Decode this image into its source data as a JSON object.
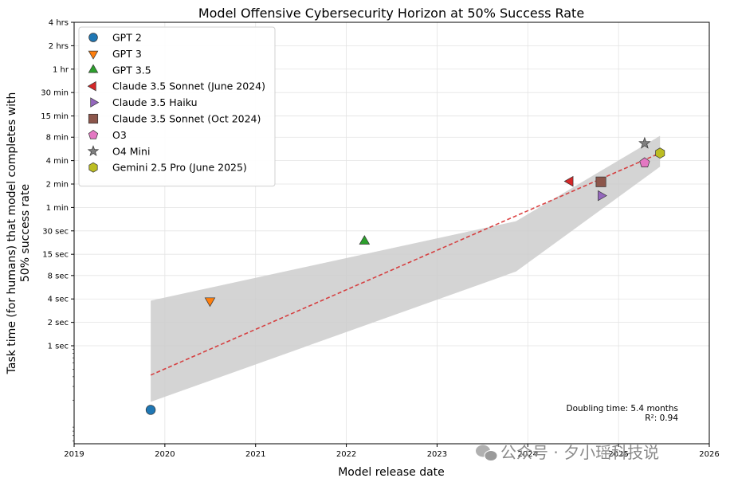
{
  "chart_data": {
    "type": "scatter",
    "title": "Model Offensive Cybersecurity Horizon at 50% Success Rate",
    "xlabel": "Model release date",
    "ylabel_lines": [
      "Task time (for humans) that model completes with",
      "50% success rate"
    ],
    "x_scale": "date",
    "y_scale": "log",
    "xlim": [
      "2019-01-01",
      "2026-01-01"
    ],
    "x_ticks": [
      "2019",
      "2020",
      "2021",
      "2022",
      "2023",
      "2024",
      "2025",
      "2026"
    ],
    "y_ticks": [
      {
        "label": "1 sec",
        "seconds": 1
      },
      {
        "label": "2 sec",
        "seconds": 2
      },
      {
        "label": "4 sec",
        "seconds": 4
      },
      {
        "label": "8 sec",
        "seconds": 8
      },
      {
        "label": "15 sec",
        "seconds": 15
      },
      {
        "label": "30 sec",
        "seconds": 30
      },
      {
        "label": "1 min",
        "seconds": 60
      },
      {
        "label": "2 min",
        "seconds": 120
      },
      {
        "label": "4 min",
        "seconds": 240
      },
      {
        "label": "8 min",
        "seconds": 480
      },
      {
        "label": "15 min",
        "seconds": 900
      },
      {
        "label": "30 min",
        "seconds": 1800
      },
      {
        "label": "1 hr",
        "seconds": 3600
      },
      {
        "label": "2 hrs",
        "seconds": 7200
      },
      {
        "label": "4 hrs",
        "seconds": 14400
      }
    ],
    "ylim_seconds": [
      0.055,
      14400
    ],
    "grid": true,
    "legend_position": "top-left",
    "series": [
      {
        "name": "GPT 2",
        "date": "2019-11-05",
        "seconds": 0.15,
        "marker": "circle",
        "color": "#1f77b4"
      },
      {
        "name": "GPT 3",
        "date": "2020-07-01",
        "seconds": 3.8,
        "marker": "triangle-down",
        "color": "#ff7f0e"
      },
      {
        "name": "GPT 3.5",
        "date": "2022-03-15",
        "seconds": 22,
        "marker": "triangle-up",
        "color": "#2ca02c"
      },
      {
        "name": "Claude 3.5 Sonnet (June 2024)",
        "date": "2024-06-20",
        "seconds": 130,
        "marker": "triangle-left",
        "color": "#d62728"
      },
      {
        "name": "Claude 3.5 Haiku",
        "date": "2024-10-22",
        "seconds": 85,
        "marker": "triangle-right",
        "color": "#9467bd"
      },
      {
        "name": "Claude 3.5 Sonnet (Oct 2024)",
        "date": "2024-10-22",
        "seconds": 128,
        "marker": "square",
        "color": "#8c564b"
      },
      {
        "name": "O3",
        "date": "2025-04-16",
        "seconds": 225,
        "marker": "pentagon",
        "color": "#e377c2"
      },
      {
        "name": "O4 Mini",
        "date": "2025-04-16",
        "seconds": 400,
        "marker": "star",
        "color": "#7f7f7f"
      },
      {
        "name": "Gemini 2.5 Pro (June 2025)",
        "date": "2025-06-17",
        "seconds": 300,
        "marker": "hexagon",
        "color": "#bcbd22"
      }
    ],
    "trend": {
      "style": "dashed",
      "color": "#d62728",
      "points": [
        {
          "date": "2019-11-05",
          "seconds": 0.42
        },
        {
          "date": "2025-06-17",
          "seconds": 300
        }
      ]
    },
    "confidence_band": {
      "color": "#cccccc",
      "upper": [
        {
          "date": "2019-11-05",
          "seconds": 3.8
        },
        {
          "date": "2023-11-15",
          "seconds": 40
        },
        {
          "date": "2025-06-17",
          "seconds": 500
        }
      ],
      "lower": [
        {
          "date": "2019-11-05",
          "seconds": 0.19
        },
        {
          "date": "2023-11-15",
          "seconds": 9
        },
        {
          "date": "2025-06-17",
          "seconds": 200
        }
      ]
    },
    "annotation": {
      "lines": [
        "Doubling time: 5.4 months",
        "R²: 0.94"
      ]
    }
  },
  "watermark": "公众号 · 夕小瑶科技说"
}
